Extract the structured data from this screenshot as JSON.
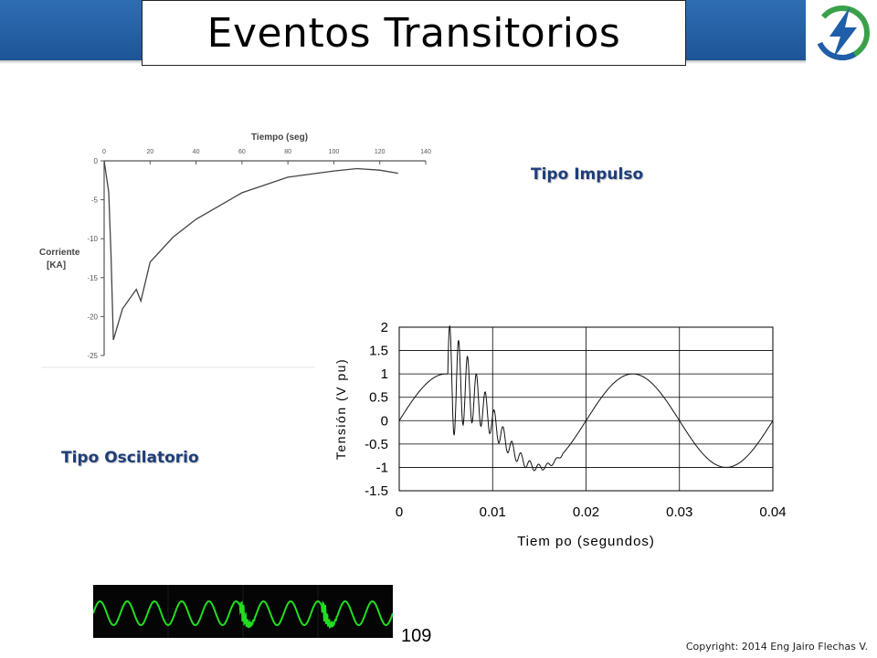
{
  "slide": {
    "title": "Eventos Transitorios",
    "page_number": "109",
    "copyright": "Copyright: 2014 Eng Jairo Flechas V.",
    "label_impulse": "Tipo Impulso",
    "label_oscillatory": "Tipo Oscilatorio",
    "logo_icon": "lightning-bolt-logo-icon",
    "colors": {
      "header": "#1d5597",
      "label": "#1f3e78",
      "logo_green": "#3aa14a",
      "logo_blue": "#1f5ea8",
      "scope_wave": "#22dd22"
    }
  },
  "chart_data": [
    {
      "type": "line",
      "title": "",
      "xlabel": "Tiempo (seg)",
      "ylabel": "Corriente [KA]",
      "x_ticks": [
        "0",
        "20",
        "40",
        "60",
        "80",
        "100",
        "120",
        "140"
      ],
      "y_ticks": [
        "0",
        "-5",
        "-10",
        "-15",
        "-20",
        "-25"
      ],
      "xlim": [
        0,
        140
      ],
      "ylim": [
        -25,
        0
      ],
      "x": [
        0,
        1,
        2,
        3,
        4,
        5,
        8,
        14,
        16,
        20,
        30,
        40,
        60,
        80,
        100,
        110,
        120,
        128
      ],
      "y": [
        0,
        -2,
        -4,
        -12,
        -23,
        -22,
        -19,
        -16.5,
        -18,
        -13,
        -9.8,
        -7.5,
        -4.1,
        -2.1,
        -1.3,
        -1.0,
        -1.2,
        -1.6
      ]
    },
    {
      "type": "line",
      "title": "",
      "xlabel": "Tiem po (segundos)",
      "ylabel": "Tensión (V pu)",
      "x_ticks": [
        "0",
        "0.01",
        "0.02",
        "0.03",
        "0.04"
      ],
      "y_ticks": [
        "2",
        "1.5",
        "1",
        "0.5",
        "0",
        "-0.5",
        "-1",
        "-1.5"
      ],
      "xlim": [
        0,
        0.04
      ],
      "ylim": [
        -1.5,
        2
      ],
      "grid": true,
      "frequency_hz": 50,
      "transient_start": 0.0052,
      "transient_end": 0.0175,
      "transient_peak": 1.8
    },
    {
      "type": "line",
      "description_kind": "oscilloscope",
      "cycles": 11,
      "bursts_at_cycles": [
        5.5,
        8.5
      ]
    }
  ]
}
